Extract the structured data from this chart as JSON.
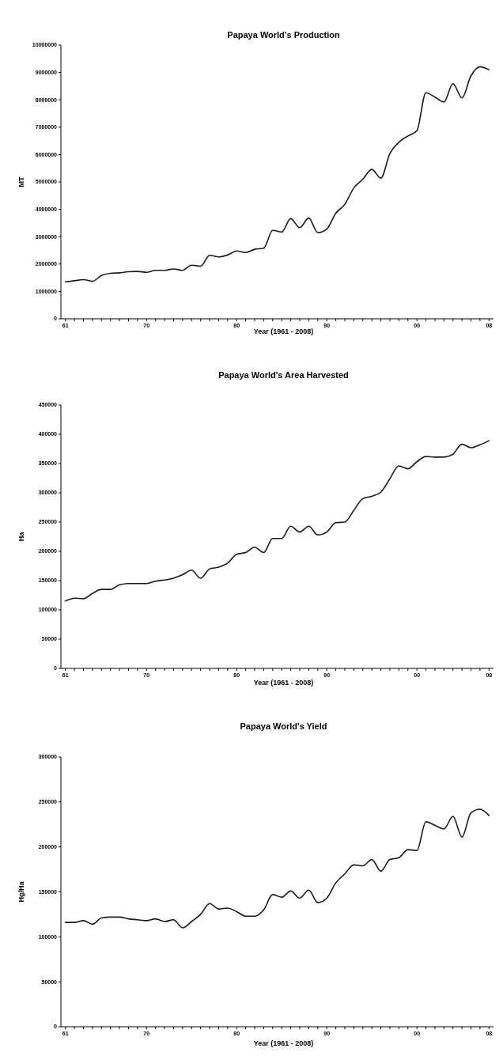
{
  "chart_data": [
    {
      "type": "line",
      "title": "Papaya World's Production",
      "xlabel": "Year (1961 - 2008)",
      "ylabel": "MT",
      "color": "#1a1a1a",
      "x": [
        1961,
        1962,
        1963,
        1964,
        1965,
        1966,
        1967,
        1968,
        1969,
        1970,
        1971,
        1972,
        1973,
        1974,
        1975,
        1976,
        1977,
        1978,
        1979,
        1980,
        1981,
        1982,
        1983,
        1984,
        1985,
        1986,
        1987,
        1988,
        1989,
        1990,
        1991,
        1992,
        1993,
        1994,
        1995,
        1996,
        1997,
        1998,
        1999,
        2000,
        2001,
        2002,
        2003,
        2004,
        2005,
        2006,
        2007,
        2008
      ],
      "values": [
        1350000,
        1390000,
        1430000,
        1370000,
        1580000,
        1660000,
        1680000,
        1720000,
        1730000,
        1700000,
        1770000,
        1770000,
        1820000,
        1770000,
        1960000,
        1920000,
        2320000,
        2260000,
        2330000,
        2480000,
        2420000,
        2540000,
        2580000,
        3230000,
        3170000,
        3660000,
        3330000,
        3680000,
        3150000,
        3280000,
        3860000,
        4180000,
        4780000,
        5100000,
        5460000,
        5140000,
        6040000,
        6450000,
        6680000,
        6870000,
        8260000,
        8100000,
        7920000,
        8590000,
        8070000,
        8880000,
        9210000,
        9100000
      ],
      "xlim": [
        1960.5,
        2008.5
      ],
      "xticks": [
        {
          "value": 1961,
          "label": "61"
        },
        {
          "value": 1962,
          "label": null
        },
        {
          "value": 1963,
          "label": null
        },
        {
          "value": 1964,
          "label": null
        },
        {
          "value": 1965,
          "label": null
        },
        {
          "value": 1966,
          "label": null
        },
        {
          "value": 1967,
          "label": null
        },
        {
          "value": 1968,
          "label": null
        },
        {
          "value": 1969,
          "label": null
        },
        {
          "value": 1970,
          "label": "70"
        },
        {
          "value": 1971,
          "label": null
        },
        {
          "value": 1972,
          "label": null
        },
        {
          "value": 1973,
          "label": null
        },
        {
          "value": 1974,
          "label": null
        },
        {
          "value": 1975,
          "label": null
        },
        {
          "value": 1976,
          "label": null
        },
        {
          "value": 1977,
          "label": null
        },
        {
          "value": 1978,
          "label": null
        },
        {
          "value": 1979,
          "label": null
        },
        {
          "value": 1980,
          "label": "80"
        },
        {
          "value": 1981,
          "label": null
        },
        {
          "value": 1982,
          "label": null
        },
        {
          "value": 1983,
          "label": null
        },
        {
          "value": 1984,
          "label": null
        },
        {
          "value": 1985,
          "label": null
        },
        {
          "value": 1986,
          "label": null
        },
        {
          "value": 1987,
          "label": null
        },
        {
          "value": 1988,
          "label": null
        },
        {
          "value": 1989,
          "label": null
        },
        {
          "value": 1990,
          "label": "90"
        },
        {
          "value": 1991,
          "label": null
        },
        {
          "value": 1992,
          "label": null
        },
        {
          "value": 1993,
          "label": null
        },
        {
          "value": 1994,
          "label": null
        },
        {
          "value": 1995,
          "label": null
        },
        {
          "value": 1996,
          "label": null
        },
        {
          "value": 1997,
          "label": null
        },
        {
          "value": 1998,
          "label": null
        },
        {
          "value": 1999,
          "label": null
        },
        {
          "value": 2000,
          "label": "00"
        },
        {
          "value": 2001,
          "label": null
        },
        {
          "value": 2002,
          "label": null
        },
        {
          "value": 2003,
          "label": null
        },
        {
          "value": 2004,
          "label": null
        },
        {
          "value": 2005,
          "label": null
        },
        {
          "value": 2006,
          "label": null
        },
        {
          "value": 2007,
          "label": null
        },
        {
          "value": 2008,
          "label": "08"
        }
      ],
      "ylim": [
        0,
        10000000
      ],
      "yticks": [
        0,
        1000000,
        2000000,
        3000000,
        4000000,
        5000000,
        6000000,
        7000000,
        8000000,
        9000000,
        10000000
      ]
    },
    {
      "type": "line",
      "title": "Papaya World's Area Harvested",
      "xlabel": "Year (1961 - 2008)",
      "ylabel": "Ha",
      "color": "#1a1a1a",
      "x": [
        1961,
        1962,
        1963,
        1964,
        1965,
        1966,
        1967,
        1968,
        1969,
        1970,
        1971,
        1972,
        1973,
        1974,
        1975,
        1976,
        1977,
        1978,
        1979,
        1980,
        1981,
        1982,
        1983,
        1984,
        1985,
        1986,
        1987,
        1988,
        1989,
        1990,
        1991,
        1992,
        1993,
        1994,
        1995,
        1996,
        1997,
        1998,
        1999,
        2000,
        2001,
        2002,
        2003,
        2004,
        2005,
        2006,
        2007,
        2008
      ],
      "values": [
        115000,
        120000,
        119000,
        128000,
        135000,
        135000,
        143000,
        145000,
        145000,
        145000,
        149000,
        151000,
        154000,
        160000,
        168000,
        154000,
        170000,
        173000,
        180000,
        195000,
        198000,
        207000,
        198000,
        222000,
        222000,
        243000,
        233000,
        243000,
        228000,
        233000,
        249000,
        250000,
        270000,
        290000,
        294000,
        301000,
        324000,
        346000,
        341000,
        353000,
        362000,
        361000,
        361000,
        366000,
        383000,
        377000,
        382000,
        389000
      ],
      "xlim": [
        1960.5,
        2008.5
      ],
      "xticks": [
        {
          "value": 1961,
          "label": "61"
        },
        {
          "value": 1962,
          "label": null
        },
        {
          "value": 1963,
          "label": null
        },
        {
          "value": 1964,
          "label": null
        },
        {
          "value": 1965,
          "label": null
        },
        {
          "value": 1966,
          "label": null
        },
        {
          "value": 1967,
          "label": null
        },
        {
          "value": 1968,
          "label": null
        },
        {
          "value": 1969,
          "label": null
        },
        {
          "value": 1970,
          "label": "70"
        },
        {
          "value": 1971,
          "label": null
        },
        {
          "value": 1972,
          "label": null
        },
        {
          "value": 1973,
          "label": null
        },
        {
          "value": 1974,
          "label": null
        },
        {
          "value": 1975,
          "label": null
        },
        {
          "value": 1976,
          "label": null
        },
        {
          "value": 1977,
          "label": null
        },
        {
          "value": 1978,
          "label": null
        },
        {
          "value": 1979,
          "label": null
        },
        {
          "value": 1980,
          "label": "80"
        },
        {
          "value": 1981,
          "label": null
        },
        {
          "value": 1982,
          "label": null
        },
        {
          "value": 1983,
          "label": null
        },
        {
          "value": 1984,
          "label": null
        },
        {
          "value": 1985,
          "label": null
        },
        {
          "value": 1986,
          "label": null
        },
        {
          "value": 1987,
          "label": null
        },
        {
          "value": 1988,
          "label": null
        },
        {
          "value": 1989,
          "label": null
        },
        {
          "value": 1990,
          "label": "90"
        },
        {
          "value": 1991,
          "label": null
        },
        {
          "value": 1992,
          "label": null
        },
        {
          "value": 1993,
          "label": null
        },
        {
          "value": 1994,
          "label": null
        },
        {
          "value": 1995,
          "label": null
        },
        {
          "value": 1996,
          "label": null
        },
        {
          "value": 1997,
          "label": null
        },
        {
          "value": 1998,
          "label": null
        },
        {
          "value": 1999,
          "label": null
        },
        {
          "value": 2000,
          "label": "00"
        },
        {
          "value": 2001,
          "label": null
        },
        {
          "value": 2002,
          "label": null
        },
        {
          "value": 2003,
          "label": null
        },
        {
          "value": 2004,
          "label": null
        },
        {
          "value": 2005,
          "label": null
        },
        {
          "value": 2006,
          "label": null
        },
        {
          "value": 2007,
          "label": null
        },
        {
          "value": 2008,
          "label": "08"
        }
      ],
      "ylim": [
        0,
        450000
      ],
      "yticks": [
        0,
        50000,
        100000,
        150000,
        200000,
        250000,
        300000,
        350000,
        400000,
        450000
      ]
    },
    {
      "type": "line",
      "title": "Papaya World's Yield",
      "xlabel": "Year (1961 - 2008)",
      "ylabel": "Hg/Ha",
      "color": "#1a1a1a",
      "x": [
        1961,
        1962,
        1963,
        1964,
        1965,
        1966,
        1967,
        1968,
        1969,
        1970,
        1971,
        1972,
        1973,
        1974,
        1975,
        1976,
        1977,
        1978,
        1979,
        1980,
        1981,
        1982,
        1983,
        1984,
        1985,
        1986,
        1987,
        1988,
        1989,
        1990,
        1991,
        1992,
        1993,
        1994,
        1995,
        1996,
        1997,
        1998,
        1999,
        2000,
        2001,
        2002,
        2003,
        2004,
        2005,
        2006,
        2007,
        2008
      ],
      "values": [
        116000,
        116000,
        118000,
        114000,
        121000,
        122000,
        122000,
        120000,
        119000,
        118000,
        120000,
        117000,
        119000,
        110000,
        117000,
        125000,
        137000,
        131000,
        132000,
        128000,
        123000,
        123000,
        130000,
        147000,
        144000,
        151000,
        143000,
        152000,
        138000,
        143000,
        160000,
        170000,
        180000,
        179000,
        186000,
        173000,
        186000,
        188000,
        197000,
        196000,
        228000,
        224000,
        220000,
        234000,
        211000,
        238000,
        242000,
        235000
      ],
      "xlim": [
        1960.5,
        2008.5
      ],
      "xticks": [
        {
          "value": 1961,
          "label": "61"
        },
        {
          "value": 1962,
          "label": null
        },
        {
          "value": 1963,
          "label": null
        },
        {
          "value": 1964,
          "label": null
        },
        {
          "value": 1965,
          "label": null
        },
        {
          "value": 1966,
          "label": null
        },
        {
          "value": 1967,
          "label": null
        },
        {
          "value": 1968,
          "label": null
        },
        {
          "value": 1969,
          "label": null
        },
        {
          "value": 1970,
          "label": "70"
        },
        {
          "value": 1971,
          "label": null
        },
        {
          "value": 1972,
          "label": null
        },
        {
          "value": 1973,
          "label": null
        },
        {
          "value": 1974,
          "label": null
        },
        {
          "value": 1975,
          "label": null
        },
        {
          "value": 1976,
          "label": null
        },
        {
          "value": 1977,
          "label": null
        },
        {
          "value": 1978,
          "label": null
        },
        {
          "value": 1979,
          "label": null
        },
        {
          "value": 1980,
          "label": "80"
        },
        {
          "value": 1981,
          "label": null
        },
        {
          "value": 1982,
          "label": null
        },
        {
          "value": 1983,
          "label": null
        },
        {
          "value": 1984,
          "label": null
        },
        {
          "value": 1985,
          "label": null
        },
        {
          "value": 1986,
          "label": null
        },
        {
          "value": 1987,
          "label": null
        },
        {
          "value": 1988,
          "label": null
        },
        {
          "value": 1989,
          "label": null
        },
        {
          "value": 1990,
          "label": "90"
        },
        {
          "value": 1991,
          "label": null
        },
        {
          "value": 1992,
          "label": null
        },
        {
          "value": 1993,
          "label": null
        },
        {
          "value": 1994,
          "label": null
        },
        {
          "value": 1995,
          "label": null
        },
        {
          "value": 1996,
          "label": null
        },
        {
          "value": 1997,
          "label": null
        },
        {
          "value": 1998,
          "label": null
        },
        {
          "value": 1999,
          "label": null
        },
        {
          "value": 2000,
          "label": "00"
        },
        {
          "value": 2001,
          "label": null
        },
        {
          "value": 2002,
          "label": null
        },
        {
          "value": 2003,
          "label": null
        },
        {
          "value": 2004,
          "label": null
        },
        {
          "value": 2005,
          "label": null
        },
        {
          "value": 2006,
          "label": null
        },
        {
          "value": 2007,
          "label": null
        },
        {
          "value": 2008,
          "label": "08"
        }
      ],
      "ylim": [
        0,
        300000
      ],
      "yticks": [
        0,
        50000,
        100000,
        150000,
        200000,
        250000,
        300000
      ]
    }
  ]
}
